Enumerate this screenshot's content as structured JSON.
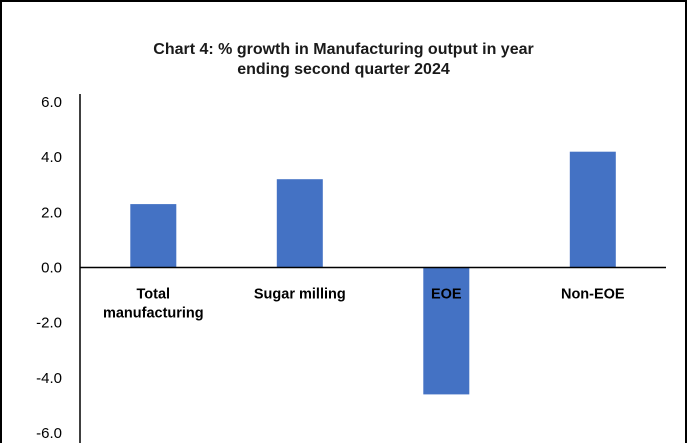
{
  "chart_data": {
    "type": "bar",
    "title_lines": [
      "Chart 4: % growth in Manufacturing output in year",
      "ending second quarter 2024"
    ],
    "categories": [
      [
        "Total",
        "manufacturing"
      ],
      [
        "Sugar milling"
      ],
      [
        "EOE"
      ],
      [
        "Non-EOE"
      ]
    ],
    "values": [
      2.3,
      3.2,
      -4.6,
      4.2
    ],
    "yticks": [
      "6.0",
      "4.0",
      "2.0",
      "0.0",
      "-2.0",
      "-4.0",
      "-6.0"
    ],
    "ylim": [
      -6,
      6
    ],
    "grid": false,
    "legend": "none",
    "bar_color": "#4472C4",
    "axis_color": "#000000"
  }
}
